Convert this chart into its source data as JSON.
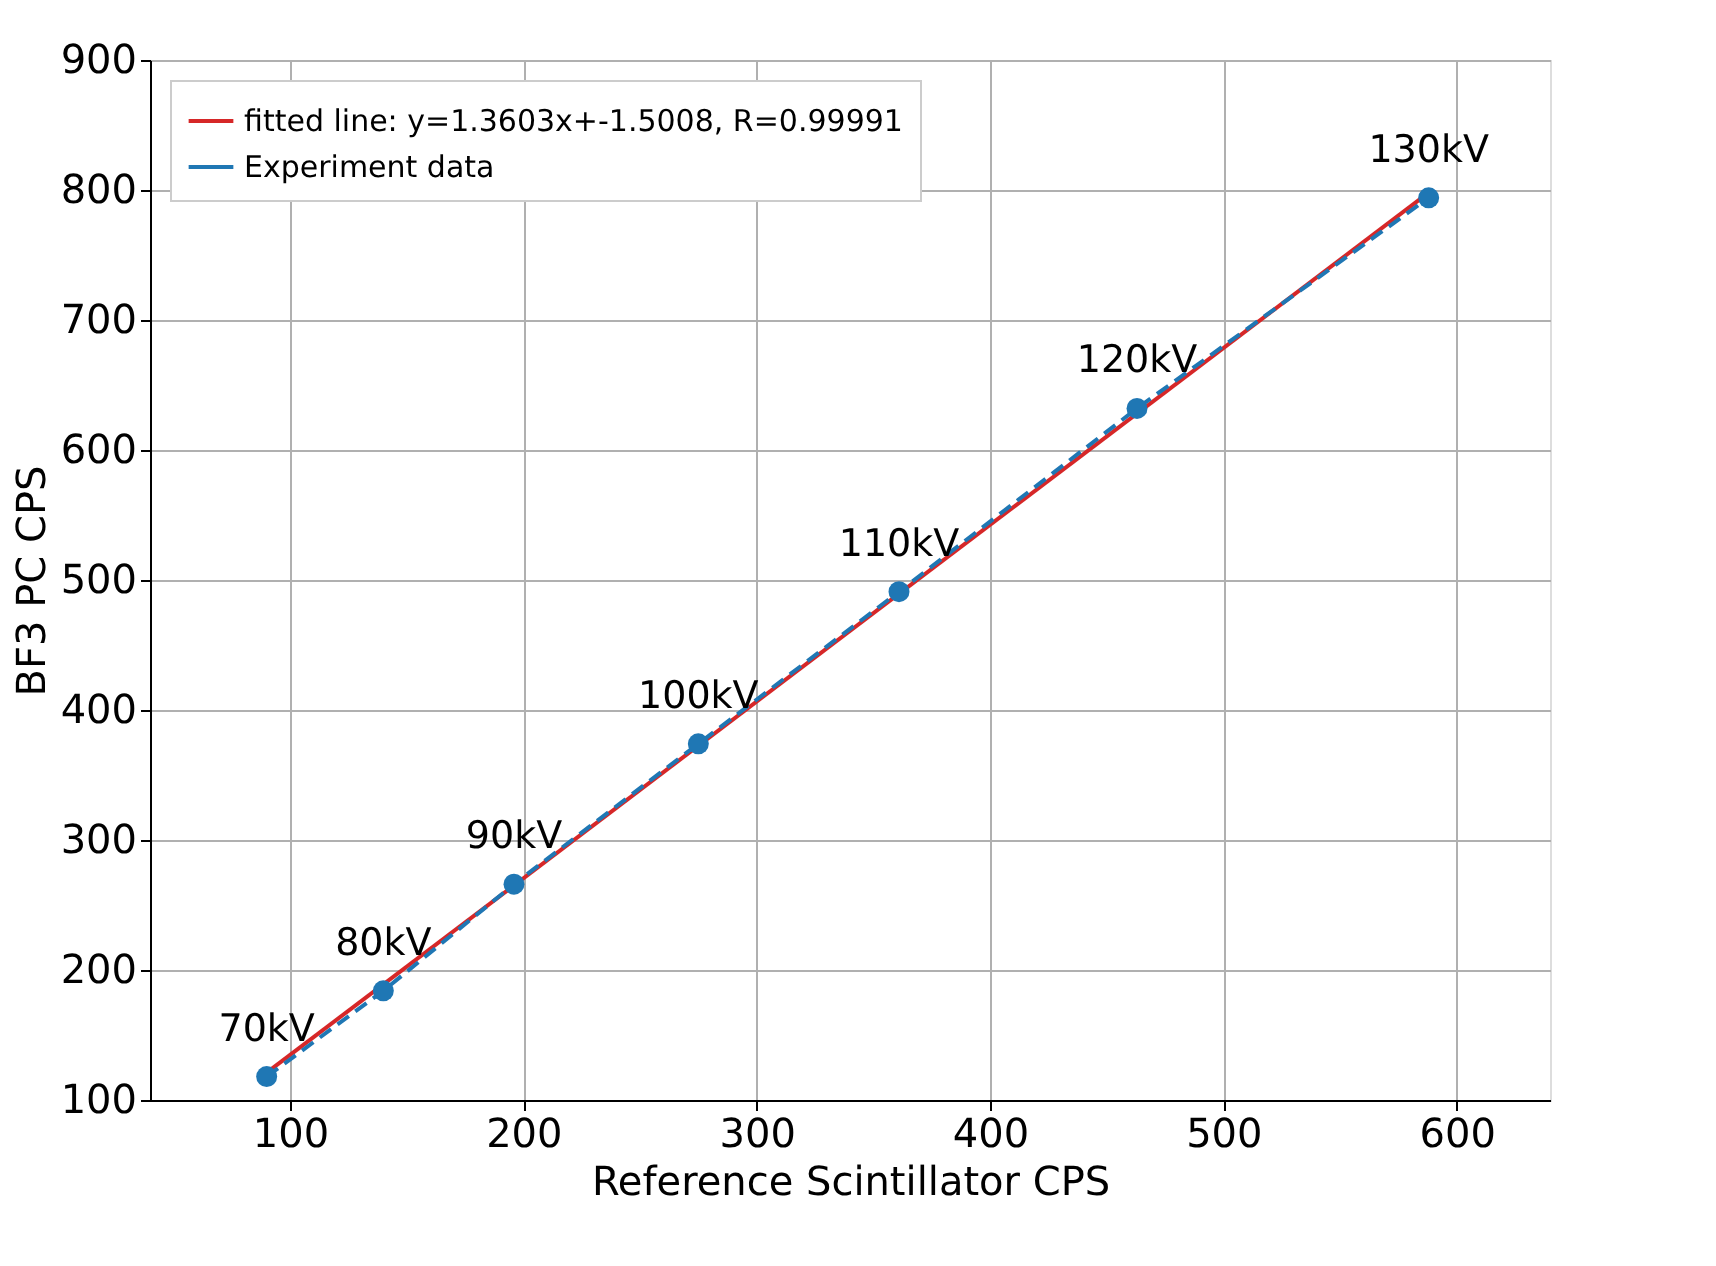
{
  "chart_data": {
    "type": "line",
    "xlabel": "Reference Scintillator CPS",
    "ylabel": "BF3 PC CPS",
    "xlim": [
      40,
      640
    ],
    "ylim": [
      100,
      900
    ],
    "xticks": [
      100,
      200,
      300,
      400,
      500,
      600
    ],
    "yticks": [
      100,
      200,
      300,
      400,
      500,
      600,
      700,
      800,
      900
    ],
    "grid": true,
    "legend": "top left",
    "series": [
      {
        "name": "fitted line: y=1.3603x+-1.5008, R=0.99991",
        "color": "#d62728",
        "line_style": "solid",
        "marker": "none",
        "x": [
          90,
          588
        ],
        "values": [
          121,
          798
        ]
      },
      {
        "name": "Experiment data",
        "color": "#1f77b4",
        "line_style": "dashed",
        "marker": "circle",
        "x": [
          90,
          140,
          196,
          275,
          361,
          463,
          588
        ],
        "values": [
          118,
          184,
          266,
          374,
          491,
          632,
          794
        ]
      }
    ],
    "annotations": [
      {
        "text": "70kV",
        "x": 90,
        "y": 118
      },
      {
        "text": "80kV",
        "x": 140,
        "y": 184
      },
      {
        "text": "90kV",
        "x": 196,
        "y": 266
      },
      {
        "text": "100kV",
        "x": 275,
        "y": 374
      },
      {
        "text": "110kV",
        "x": 361,
        "y": 491
      },
      {
        "text": "120kV",
        "x": 463,
        "y": 632
      },
      {
        "text": "130kV",
        "x": 588,
        "y": 794
      }
    ]
  }
}
